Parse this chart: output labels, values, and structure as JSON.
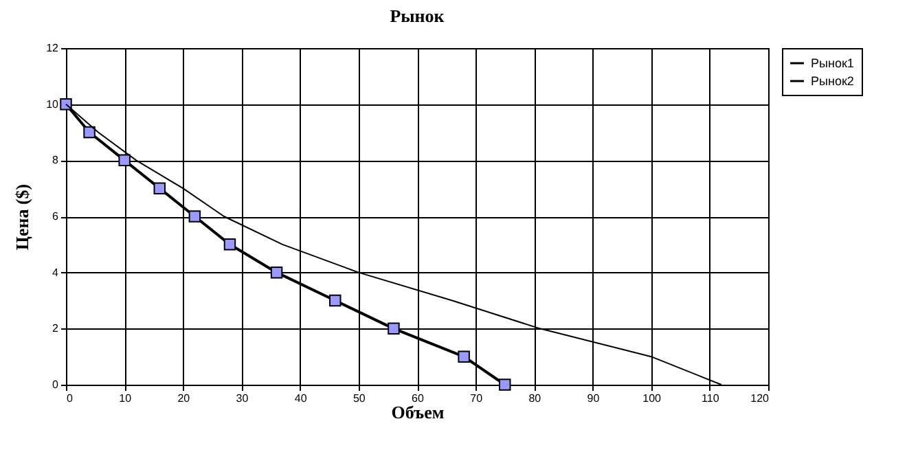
{
  "chart_data": {
    "type": "line",
    "title": "Рынок",
    "xlabel": "Объем",
    "ylabel": "Цена ($)",
    "xlim": [
      0,
      120
    ],
    "xticks": [
      0,
      10,
      20,
      30,
      40,
      50,
      60,
      70,
      80,
      90,
      100,
      110,
      120
    ],
    "ylim": [
      0,
      12
    ],
    "yticks": [
      0,
      2,
      4,
      6,
      8,
      10,
      12
    ],
    "grid": true,
    "legend": "right",
    "series": [
      {
        "name": "Рынок1",
        "color": "#000000",
        "marker": "square",
        "x": [
          0,
          4,
          10,
          16,
          22,
          28,
          36,
          46,
          56,
          68,
          75
        ],
        "values": [
          10,
          9,
          8,
          7,
          6,
          5,
          4,
          3,
          2,
          1,
          0
        ]
      },
      {
        "name": "Рынок2",
        "color": "#000000",
        "marker": "none",
        "x": [
          0,
          5.5,
          12,
          20,
          27,
          37,
          50,
          66,
          81,
          100,
          112
        ],
        "values": [
          10,
          9,
          8,
          7,
          6,
          5,
          4,
          3,
          2,
          1,
          0
        ]
      }
    ]
  }
}
